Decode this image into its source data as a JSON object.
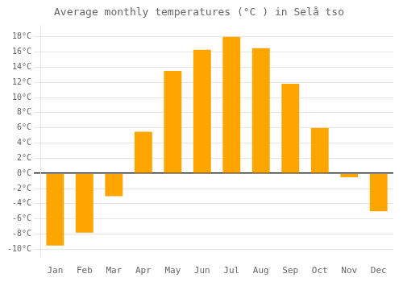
{
  "chart_data": {
    "type": "bar",
    "title": "Average monthly temperatures (°C ) in Selå tso",
    "categories": [
      "Jan",
      "Feb",
      "Mar",
      "Apr",
      "May",
      "Jun",
      "Jul",
      "Aug",
      "Sep",
      "Oct",
      "Nov",
      "Dec"
    ],
    "values": [
      -9.5,
      -7.8,
      -3.0,
      5.5,
      13.5,
      16.3,
      18.0,
      16.5,
      11.8,
      6.0,
      -0.5,
      -5.0
    ],
    "color": "#FFA500",
    "ylim": [
      -11,
      19.5
    ],
    "yticks": [
      {
        "value": -10,
        "label": "-10°C"
      },
      {
        "value": -8,
        "label": "-8°C"
      },
      {
        "value": -6,
        "label": "-6°C"
      },
      {
        "value": -4,
        "label": "-4°C"
      },
      {
        "value": -2,
        "label": "-2°C"
      },
      {
        "value": 0,
        "label": "0°C"
      },
      {
        "value": 2,
        "label": "2°C"
      },
      {
        "value": 4,
        "label": "4°C"
      },
      {
        "value": 6,
        "label": "6°C"
      },
      {
        "value": 8,
        "label": "8°C"
      },
      {
        "value": 10,
        "label": "10°C"
      },
      {
        "value": 12,
        "label": "12°C"
      },
      {
        "value": 14,
        "label": "14°C"
      },
      {
        "value": 16,
        "label": "16°C"
      },
      {
        "value": 18,
        "label": "18°C"
      }
    ],
    "grid": true
  }
}
